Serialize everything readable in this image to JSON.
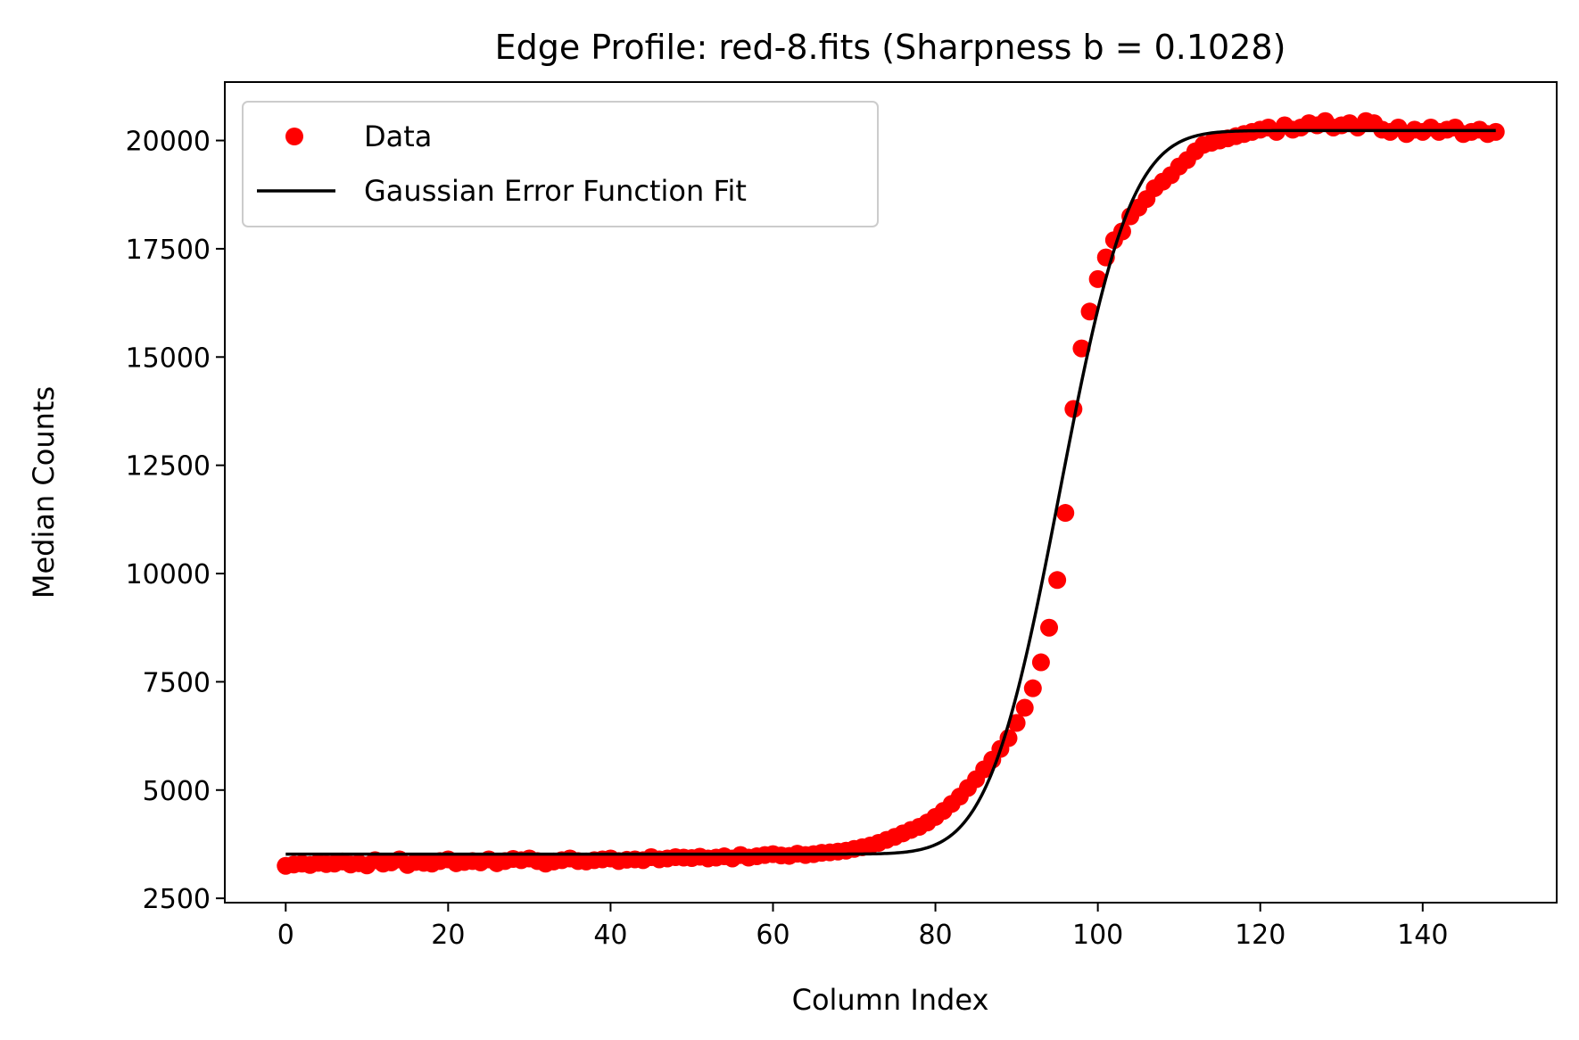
{
  "chart_data": {
    "type": "scatter",
    "title": "Edge Profile: red-8.fits (Sharpness b = 0.1028)",
    "xlabel": "Column Index",
    "ylabel": "Median Counts",
    "xlim": [
      -7.5,
      156.5
    ],
    "ylim": [
      2400,
      21350
    ],
    "xticks": [
      0,
      20,
      40,
      60,
      80,
      100,
      120,
      140
    ],
    "yticks": [
      2500,
      5000,
      7500,
      10000,
      12500,
      15000,
      17500,
      20000
    ],
    "grid": false,
    "legend_position": "upper-left",
    "series": [
      {
        "name": "Data",
        "kind": "scatter",
        "color": "#ff0000",
        "x": [
          0,
          1,
          2,
          3,
          4,
          5,
          6,
          7,
          8,
          9,
          10,
          11,
          12,
          13,
          14,
          15,
          16,
          17,
          18,
          19,
          20,
          21,
          22,
          23,
          24,
          25,
          26,
          27,
          28,
          29,
          30,
          31,
          32,
          33,
          34,
          35,
          36,
          37,
          38,
          39,
          40,
          41,
          42,
          43,
          44,
          45,
          46,
          47,
          48,
          49,
          50,
          51,
          52,
          53,
          54,
          55,
          56,
          57,
          58,
          59,
          60,
          61,
          62,
          63,
          64,
          65,
          66,
          67,
          68,
          69,
          70,
          71,
          72,
          73,
          74,
          75,
          76,
          77,
          78,
          79,
          80,
          81,
          82,
          83,
          84,
          85,
          86,
          87,
          88,
          89,
          90,
          91,
          92,
          93,
          94,
          95,
          96,
          97,
          98,
          99,
          100,
          101,
          102,
          103,
          104,
          105,
          106,
          107,
          108,
          109,
          110,
          111,
          112,
          113,
          114,
          115,
          116,
          117,
          118,
          119,
          120,
          121,
          122,
          123,
          124,
          125,
          126,
          127,
          128,
          129,
          130,
          131,
          132,
          133,
          134,
          135,
          136,
          137,
          138,
          139,
          140,
          141,
          142,
          143,
          144,
          145,
          146,
          147,
          148,
          149
        ],
        "y": [
          3250,
          3280,
          3300,
          3270,
          3320,
          3290,
          3300,
          3350,
          3280,
          3310,
          3260,
          3380,
          3300,
          3330,
          3400,
          3270,
          3340,
          3320,
          3300,
          3360,
          3400,
          3310,
          3340,
          3360,
          3330,
          3400,
          3310,
          3360,
          3410,
          3380,
          3420,
          3360,
          3300,
          3350,
          3380,
          3420,
          3360,
          3350,
          3380,
          3400,
          3420,
          3360,
          3390,
          3400,
          3380,
          3450,
          3400,
          3420,
          3450,
          3440,
          3430,
          3460,
          3420,
          3440,
          3470,
          3420,
          3500,
          3440,
          3470,
          3500,
          3520,
          3490,
          3480,
          3530,
          3500,
          3520,
          3550,
          3560,
          3580,
          3600,
          3640,
          3680,
          3720,
          3780,
          3850,
          3920,
          4000,
          4080,
          4150,
          4250,
          4380,
          4520,
          4680,
          4850,
          5050,
          5250,
          5480,
          5700,
          5950,
          6200,
          6550,
          6900,
          7350,
          7950,
          8750,
          9850,
          11400,
          13800,
          15200,
          16050,
          16800,
          17300,
          17700,
          17900,
          18250,
          18450,
          18650,
          18900,
          19050,
          19200,
          19400,
          19550,
          19750,
          19900,
          19950,
          20000,
          20050,
          20100,
          20150,
          20200,
          20250,
          20300,
          20200,
          20350,
          20250,
          20300,
          20400,
          20350,
          20450,
          20300,
          20350,
          20400,
          20300,
          20450,
          20400,
          20250,
          20200,
          20300,
          20150,
          20250,
          20200,
          20300,
          20200,
          20250,
          20300,
          20150,
          20200,
          20250,
          20150,
          20200
        ]
      },
      {
        "name": "Gaussian Error Function Fit",
        "kind": "line",
        "color": "#000000",
        "model": "erf",
        "low": 3520,
        "high": 20230,
        "center": 95.3,
        "sharpness": 0.1028,
        "x_start": 0,
        "x_end": 149
      }
    ]
  }
}
